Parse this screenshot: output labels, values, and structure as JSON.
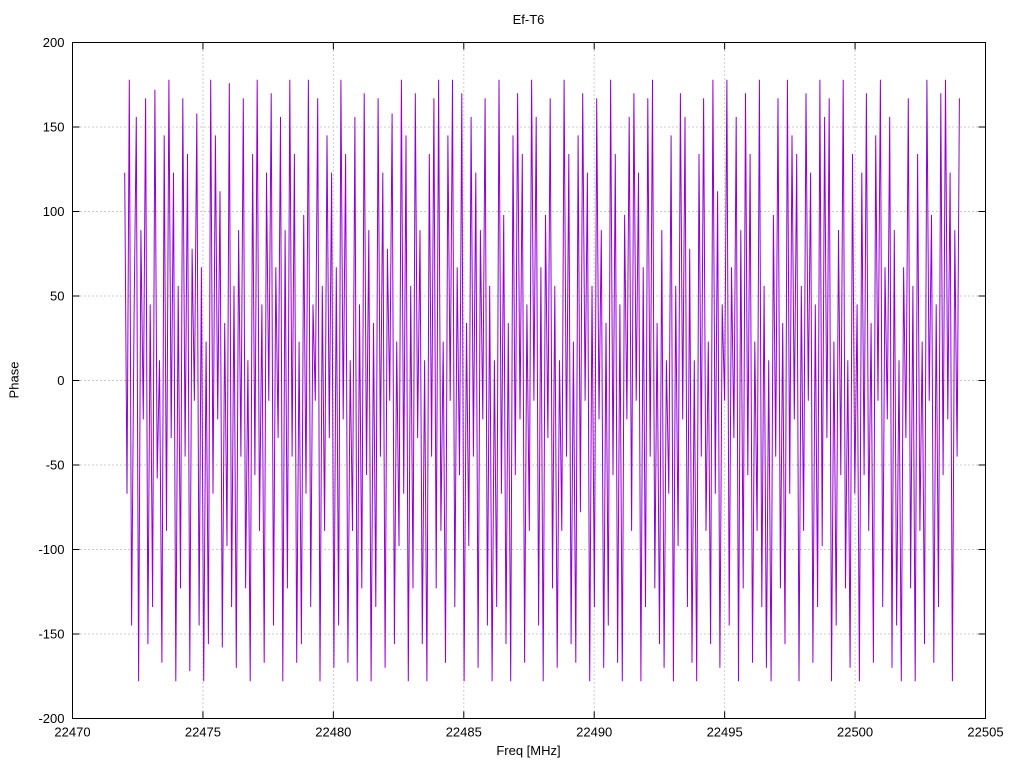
{
  "chart": {
    "title": "Ef-T6",
    "xlabel": "Freq [MHz]",
    "ylabel": "Phase"
  },
  "chart_data": {
    "type": "line",
    "title": "Ef-T6",
    "xlabel": "Freq [MHz]",
    "ylabel": "Phase",
    "xlim": [
      22470,
      22505
    ],
    "ylim": [
      -200,
      200
    ],
    "x_ticks": [
      22470,
      22475,
      22480,
      22485,
      22490,
      22495,
      22500,
      22505
    ],
    "y_ticks": [
      -200,
      -150,
      -100,
      -50,
      0,
      50,
      100,
      150,
      200
    ],
    "grid": true,
    "legend_position": "none",
    "line_color": "#9400d3",
    "grid_color": "#9a9a9a",
    "series_name": "phase",
    "x_start": 22472.0,
    "x_end": 22504.0,
    "phase_values": [
      123,
      -67,
      178,
      -145,
      34,
      156,
      -178,
      89,
      -23,
      167,
      -156,
      45,
      -134,
      172,
      -58,
      12,
      -167,
      145,
      -89,
      178,
      -34,
      123,
      -178,
      56,
      -123,
      167,
      -45,
      134,
      -172,
      78,
      -12,
      158,
      -145,
      67,
      -178,
      23,
      -156,
      178,
      -67,
      145,
      -23,
      112,
      -158,
      34,
      -98,
      176,
      -134,
      56,
      -170,
      89,
      -45,
      167,
      -123,
      12,
      -178,
      134,
      -56,
      178,
      -89,
      45,
      -167,
      123,
      -12,
      170,
      -145,
      67,
      -34,
      156,
      -178,
      89,
      -123,
      178,
      -45,
      134,
      -167,
      23,
      -156,
      98,
      -67,
      178,
      -134,
      45,
      -12,
      167,
      -178,
      56,
      -89,
      145,
      -34,
      123,
      -170,
      67,
      -145,
      178,
      -23,
      134,
      -167,
      12,
      -89,
      156,
      -178,
      45,
      -123,
      170,
      -56,
      89,
      -178,
      34,
      -134,
      167,
      -45,
      123,
      -170,
      78,
      -12,
      158,
      -156,
      23,
      -98,
      178,
      -67,
      145,
      -178,
      56,
      -123,
      170,
      -34,
      89,
      -156,
      12,
      -178,
      134,
      -45,
      167,
      -123,
      178,
      -89,
      23,
      -167,
      145,
      -12,
      178,
      -134,
      67,
      -56,
      170,
      -178,
      34,
      -98,
      156,
      -45,
      123,
      -170,
      89,
      -23,
      167,
      -145,
      56,
      -178,
      12,
      -134,
      178,
      -67,
      98,
      -156,
      34,
      -178,
      145,
      -56,
      170,
      -23,
      134,
      -167,
      45,
      -89,
      178,
      -12,
      156,
      -145,
      67,
      -178,
      98,
      -34,
      167,
      -123,
      56,
      -170,
      12,
      -89,
      178,
      -45,
      134,
      -156,
      23,
      -167,
      145,
      -78,
      170,
      -12,
      123,
      -178,
      56,
      -134,
      167,
      -23,
      89,
      -170,
      34,
      -145,
      178,
      -56,
      134,
      -167,
      45,
      -178,
      98,
      -23,
      156,
      -89,
      170,
      -12,
      123,
      -178,
      67,
      -134,
      167,
      -45,
      178,
      -123,
      34,
      -156,
      89,
      -170,
      12,
      -67,
      145,
      -178,
      56,
      -98,
      170,
      -23,
      156,
      -134,
      78,
      -167,
      12,
      -178,
      134,
      -45,
      167,
      -89,
      23,
      -156,
      178,
      -67,
      112,
      -170,
      45,
      -12,
      178,
      -145,
      67,
      -34,
      156,
      -178,
      89,
      -123,
      170,
      -56,
      134,
      -167,
      23,
      -89,
      178,
      -134,
      56,
      -170,
      12,
      -178,
      98,
      -45,
      167,
      -123,
      34,
      -156,
      178,
      -67,
      145,
      -23,
      134,
      -178,
      56,
      -89,
      170,
      -12,
      123,
      -167,
      45,
      -134,
      178,
      -98,
      156,
      -34,
      167,
      -178,
      23,
      -145,
      89,
      -56,
      178,
      -123,
      12,
      -170,
      134,
      -67,
      45,
      -178,
      123,
      -56,
      170,
      -89,
      34,
      -167,
      145,
      -12,
      178,
      -134,
      67,
      -23,
      156,
      -170,
      89,
      -145,
      12,
      -178,
      67,
      -34,
      167,
      -123,
      56,
      -178,
      134,
      -89,
      23,
      -156,
      178,
      -12,
      98,
      -167,
      45,
      -134,
      170,
      -56,
      178,
      -23,
      123,
      -178,
      89,
      -45,
      167
    ]
  }
}
